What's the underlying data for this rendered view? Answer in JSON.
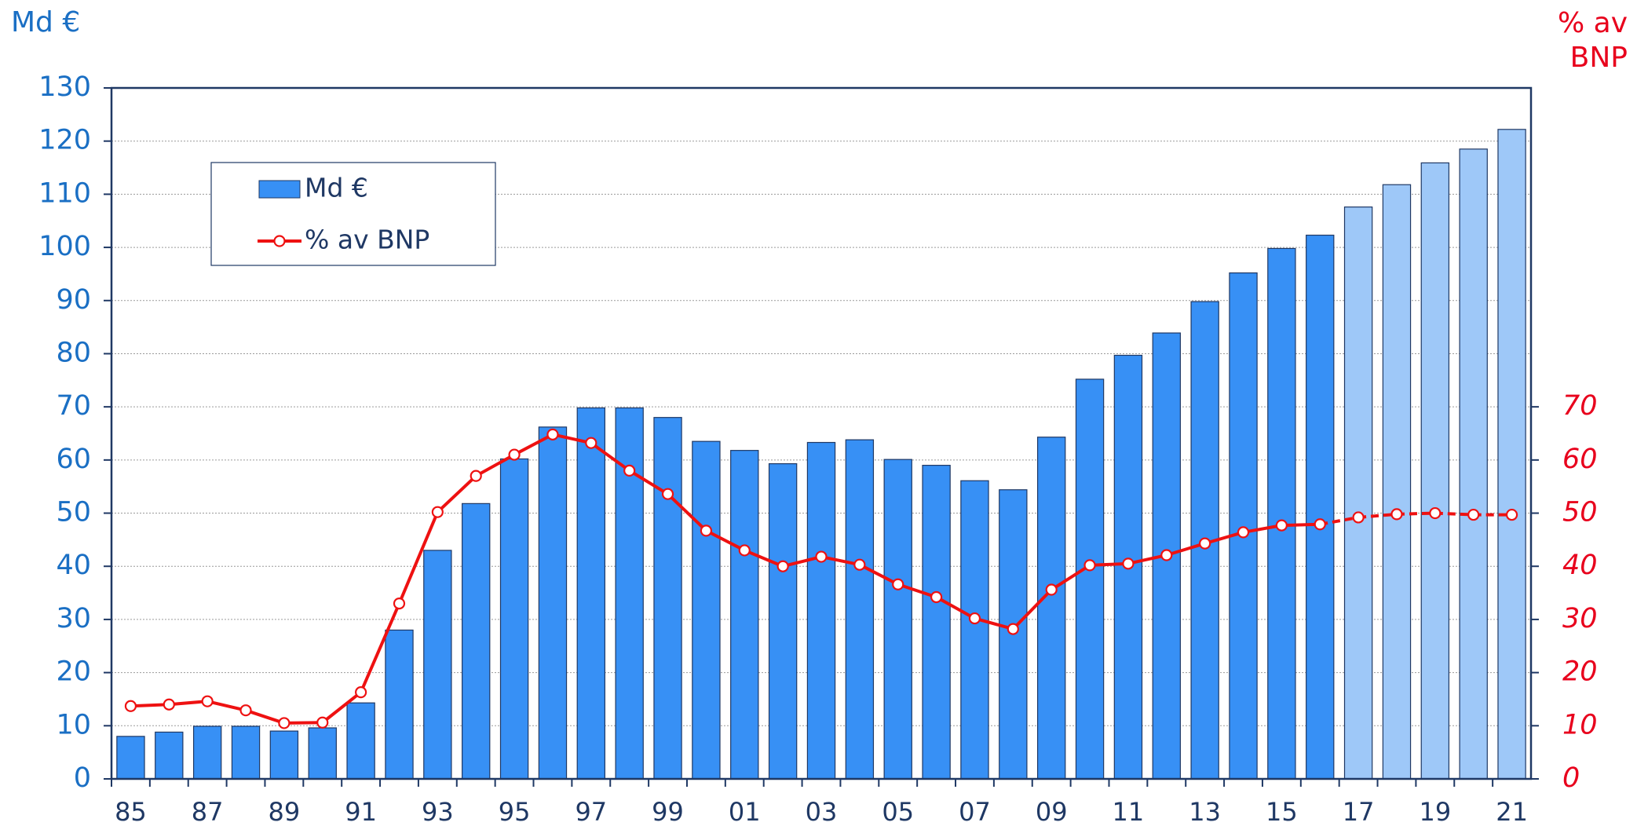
{
  "chart_data": {
    "type": "bar",
    "y_label": "Md €",
    "y2_label": "% av BNP",
    "categories": [
      "85",
      null,
      "87",
      null,
      "89",
      null,
      "91",
      null,
      "93",
      null,
      "95",
      null,
      "97",
      null,
      "99",
      null,
      "01",
      null,
      "03",
      null,
      "05",
      null,
      "07",
      null,
      "09",
      null,
      "11",
      null,
      "13",
      null,
      "15",
      null,
      "17",
      null,
      "19",
      null,
      "21"
    ],
    "projected": [
      false,
      false,
      false,
      false,
      false,
      false,
      false,
      false,
      false,
      false,
      false,
      false,
      false,
      false,
      false,
      false,
      false,
      false,
      false,
      false,
      false,
      false,
      false,
      false,
      false,
      false,
      false,
      false,
      false,
      false,
      false,
      false,
      true,
      true,
      true,
      true,
      true
    ],
    "series": [
      {
        "name": "Md €",
        "type": "bar",
        "color": "#3790f5",
        "projected_color": "#9ec8f8",
        "values": [
          8,
          8.8,
          9.9,
          9.9,
          9,
          9.6,
          14.3,
          28,
          43,
          51.8,
          60.2,
          66.2,
          69.8,
          69.8,
          68,
          63.5,
          61.8,
          59.3,
          63.3,
          63.8,
          60.1,
          59,
          56.1,
          54.4,
          64.3,
          75.2,
          79.7,
          83.9,
          89.8,
          95.2,
          99.8,
          102.3,
          107.6,
          111.8,
          115.9,
          118.5,
          122.2
        ]
      },
      {
        "name": "% av BNP",
        "type": "line",
        "axis": "y2",
        "color": "#ee1111",
        "values": [
          13.7,
          14,
          14.6,
          12.9,
          10.5,
          10.6,
          16.3,
          33,
          50.2,
          57,
          61,
          64.8,
          63.2,
          58,
          53.6,
          46.7,
          43,
          40,
          41.8,
          40.3,
          36.6,
          34.2,
          30.2,
          28.2,
          35.6,
          40.2,
          40.5,
          42.1,
          44.3,
          46.4,
          47.7,
          47.9,
          49.2,
          49.8,
          50,
          49.7,
          49.7
        ]
      }
    ],
    "ylim": [
      0,
      130
    ],
    "yticks": [
      0,
      10,
      20,
      30,
      40,
      50,
      60,
      70,
      80,
      90,
      100,
      110,
      120,
      130
    ],
    "y2lim": [
      0,
      130
    ],
    "y2ticks": [
      0,
      10,
      20,
      30,
      40,
      50,
      60,
      70
    ],
    "grid": true
  }
}
